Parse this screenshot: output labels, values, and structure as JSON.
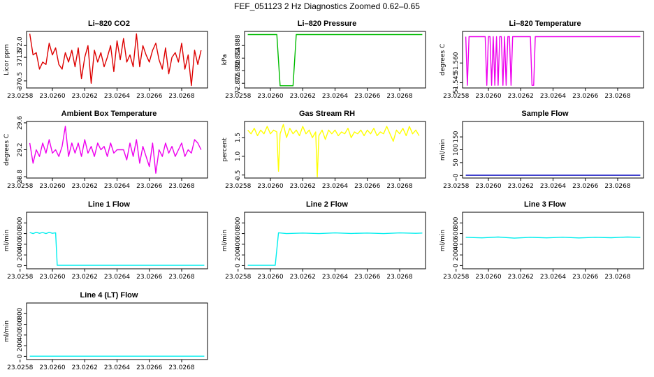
{
  "main_title": "FEF_051123  2 Hz Diagnostics Zoomed 0.62–0.65",
  "chart_data": [
    {
      "id": "co2",
      "type": "line",
      "title": "Li–820 CO2",
      "ylabel": "Licor ppm",
      "color": "#dd0000",
      "xlim": [
        23.02584,
        23.02696
      ],
      "ylim": [
        370.2,
        372.6
      ],
      "x_ticks": [
        23.0258,
        23.026,
        23.0262,
        23.0264,
        23.0266,
        23.0268
      ],
      "x_tick_labels": [
        "23.0258",
        "23.0260",
        "23.0262",
        "23.0264",
        "23.0266",
        "23.0268"
      ],
      "y_ticks": [
        370.5,
        371.5,
        372.0
      ],
      "y_tick_labels": [
        "370.5",
        "371.5",
        "372.0"
      ],
      "series": [
        {
          "name": "CO2",
          "x": [
            23.02586,
            23.02588,
            23.0259,
            23.02592,
            23.02594,
            23.02596,
            23.02598,
            23.026,
            23.02602,
            23.02604,
            23.02606,
            23.02608,
            23.0261,
            23.02612,
            23.02614,
            23.02616,
            23.02618,
            23.0262,
            23.02622,
            23.02624,
            23.02626,
            23.02628,
            23.0263,
            23.02632,
            23.02634,
            23.02636,
            23.02638,
            23.0264,
            23.02642,
            23.02644,
            23.02646,
            23.02648,
            23.0265,
            23.02652,
            23.02654,
            23.02656,
            23.02658,
            23.0266,
            23.02662,
            23.02664,
            23.02666,
            23.02668,
            23.0267,
            23.02672,
            23.02674,
            23.02676,
            23.02678,
            23.0268,
            23.02682,
            23.02684,
            23.02686,
            23.02688,
            23.0269,
            23.02692
          ],
          "values": [
            372.5,
            371.6,
            371.7,
            371.0,
            371.3,
            371.2,
            372.1,
            371.6,
            371.9,
            371.2,
            371.0,
            371.7,
            371.3,
            371.8,
            371.1,
            371.9,
            370.6,
            371.5,
            372.0,
            370.4,
            371.8,
            371.3,
            371.7,
            371.1,
            371.5,
            372.0,
            370.9,
            372.2,
            371.4,
            372.3,
            371.3,
            371.6,
            371.1,
            372.5,
            371.1,
            372.0,
            371.6,
            371.3,
            371.8,
            372.1,
            371.4,
            371.0,
            371.9,
            370.8,
            371.5,
            371.7,
            371.3,
            372.1,
            371.0,
            371.6,
            370.3,
            371.8,
            371.2,
            371.8
          ]
        }
      ]
    },
    {
      "id": "pressure",
      "type": "line",
      "title": "Li–820 Pressure",
      "ylabel": "kPa",
      "color": "#00bb00",
      "xlim": [
        23.02584,
        23.02696
      ],
      "ylim": [
        72.8745,
        72.8925
      ],
      "x_ticks": [
        23.0258,
        23.026,
        23.0262,
        23.0264,
        23.0266,
        23.0268
      ],
      "x_tick_labels": [
        "23.0258",
        "23.0260",
        "23.0262",
        "23.0264",
        "23.0266",
        "23.0268"
      ],
      "y_ticks": [
        72.876,
        72.88,
        72.884,
        72.888
      ],
      "y_tick_labels": [
        "72.876",
        "72.880",
        "72.884",
        "72.888"
      ],
      "series": [
        {
          "name": "Pressure",
          "x": [
            23.02586,
            23.02604,
            23.02606,
            23.02614,
            23.02616,
            23.02694
          ],
          "values": [
            72.8915,
            72.8915,
            72.8752,
            72.8752,
            72.8915,
            72.8915
          ]
        }
      ]
    },
    {
      "id": "temperature",
      "type": "line",
      "title": "Li–820 Temperature",
      "ylabel": "degrees C",
      "color": "#ee00ee",
      "xlim": [
        23.02584,
        23.02696
      ],
      "ylim": [
        51.541,
        51.584
      ],
      "x_ticks": [
        23.0258,
        23.026,
        23.0262,
        23.0264,
        23.0266,
        23.0268
      ],
      "x_tick_labels": [
        "23.0258",
        "23.0260",
        "23.0262",
        "23.0264",
        "23.0266",
        "23.0268"
      ],
      "y_ticks": [
        51.545,
        51.56
      ],
      "y_tick_labels": [
        "51.545",
        "51.560"
      ],
      "series": [
        {
          "name": "Temperature",
          "x": [
            23.02586,
            23.02587,
            23.02588,
            23.02589,
            23.0259,
            23.02598,
            23.02599,
            23.026,
            23.02601,
            23.02602,
            23.02603,
            23.02604,
            23.02605,
            23.02606,
            23.02607,
            23.02608,
            23.02609,
            23.0261,
            23.02611,
            23.02612,
            23.02613,
            23.02614,
            23.02615,
            23.02616,
            23.02617,
            23.02626,
            23.02627,
            23.02628,
            23.02629,
            23.0263,
            23.02694
          ],
          "values": [
            51.58,
            51.543,
            51.58,
            51.58,
            51.58,
            51.58,
            51.543,
            51.58,
            51.58,
            51.543,
            51.58,
            51.543,
            51.58,
            51.543,
            51.58,
            51.58,
            51.543,
            51.58,
            51.543,
            51.58,
            51.58,
            51.543,
            51.58,
            51.58,
            51.58,
            51.58,
            51.543,
            51.543,
            51.58,
            51.58,
            51.58
          ]
        }
      ]
    },
    {
      "id": "ambient",
      "type": "line",
      "title": "Ambient Box Temperature",
      "ylabel": "degrees C",
      "color": "#ee00ee",
      "xlim": [
        23.02584,
        23.02696
      ],
      "ylim": [
        28.78,
        29.62
      ],
      "x_ticks": [
        23.0258,
        23.026,
        23.0262,
        23.0264,
        23.0266,
        23.0268
      ],
      "x_tick_labels": [
        "23.0258",
        "23.0260",
        "23.0262",
        "23.0264",
        "23.0266",
        "23.0268"
      ],
      "y_ticks": [
        28.8,
        29.2,
        29.6
      ],
      "y_tick_labels": [
        "28.8",
        "29.2",
        "29.6"
      ],
      "series": [
        {
          "name": "Ambient",
          "x": [
            23.02586,
            23.02588,
            23.0259,
            23.02592,
            23.02594,
            23.02596,
            23.02598,
            23.026,
            23.02602,
            23.02604,
            23.02606,
            23.02608,
            23.0261,
            23.02612,
            23.02614,
            23.02616,
            23.02618,
            23.0262,
            23.02622,
            23.02624,
            23.02626,
            23.02628,
            23.0263,
            23.02632,
            23.02634,
            23.02636,
            23.02638,
            23.0264,
            23.02642,
            23.02644,
            23.02646,
            23.02648,
            23.0265,
            23.02652,
            23.02654,
            23.02656,
            23.02658,
            23.0266,
            23.02662,
            23.02664,
            23.02666,
            23.02668,
            23.0267,
            23.02672,
            23.02674,
            23.02676,
            23.02678,
            23.0268,
            23.02682,
            23.02684,
            23.02686,
            23.02688,
            23.0269,
            23.02692
          ],
          "values": [
            29.3,
            29.0,
            29.2,
            29.1,
            29.3,
            29.15,
            29.35,
            29.15,
            29.2,
            29.1,
            29.25,
            29.55,
            29.1,
            29.3,
            29.15,
            29.3,
            29.1,
            29.35,
            29.15,
            29.25,
            29.1,
            29.3,
            29.2,
            29.25,
            29.1,
            29.3,
            29.15,
            29.2,
            29.2,
            29.2,
            29.05,
            29.3,
            29.1,
            29.35,
            29.0,
            29.25,
            29.1,
            28.95,
            29.3,
            28.85,
            29.2,
            29.1,
            29.3,
            29.15,
            29.25,
            29.1,
            29.2,
            29.3,
            29.1,
            29.2,
            29.15,
            29.35,
            29.3,
            29.2
          ]
        }
      ]
    },
    {
      "id": "rh",
      "type": "line",
      "title": "Gas Stream RH",
      "ylabel": "percent",
      "color": "#ffff00",
      "xlim": [
        23.02584,
        23.02696
      ],
      "ylim": [
        0.42,
        1.93
      ],
      "x_ticks": [
        23.0258,
        23.026,
        23.0262,
        23.0264,
        23.0266,
        23.0268
      ],
      "x_tick_labels": [
        "23.0258",
        "23.0260",
        "23.0262",
        "23.0264",
        "23.0266",
        "23.0268"
      ],
      "y_ticks": [
        0.5,
        1.0,
        1.5
      ],
      "y_tick_labels": [
        "0.5",
        "1.0",
        "1.5"
      ],
      "series": [
        {
          "name": "RH",
          "x": [
            23.02586,
            23.02588,
            23.0259,
            23.02592,
            23.02594,
            23.02596,
            23.02598,
            23.026,
            23.02602,
            23.02604,
            23.02605,
            23.02606,
            23.02608,
            23.0261,
            23.02612,
            23.02614,
            23.02616,
            23.02618,
            23.0262,
            23.02622,
            23.02624,
            23.02626,
            23.02628,
            23.02629,
            23.0263,
            23.02632,
            23.02634,
            23.02636,
            23.02638,
            23.0264,
            23.02642,
            23.02644,
            23.02646,
            23.02648,
            23.0265,
            23.02652,
            23.02654,
            23.02656,
            23.02658,
            23.0266,
            23.02662,
            23.02664,
            23.02666,
            23.02668,
            23.0267,
            23.02672,
            23.02674,
            23.02676,
            23.02678,
            23.0268,
            23.02682,
            23.02684,
            23.02686,
            23.02688,
            23.0269,
            23.02692
          ],
          "values": [
            1.7,
            1.6,
            1.75,
            1.55,
            1.7,
            1.6,
            1.8,
            1.6,
            1.7,
            1.65,
            0.6,
            1.6,
            1.85,
            1.5,
            1.75,
            1.6,
            1.7,
            1.55,
            1.8,
            1.6,
            1.7,
            1.5,
            1.65,
            0.45,
            1.55,
            1.7,
            1.45,
            1.7,
            1.6,
            1.7,
            1.55,
            1.65,
            1.6,
            1.75,
            1.5,
            1.65,
            1.6,
            1.7,
            1.55,
            1.7,
            1.6,
            1.75,
            1.55,
            1.65,
            1.6,
            1.8,
            1.6,
            1.4,
            1.7,
            1.6,
            1.75,
            1.55,
            1.8,
            1.6,
            1.7,
            1.55
          ]
        }
      ]
    },
    {
      "id": "sample_flow",
      "type": "line",
      "title": "Sample Flow",
      "ylabel": "ml/min",
      "color": "#0000bb",
      "xlim": [
        23.02584,
        23.02696
      ],
      "ylim": [
        -10,
        210
      ],
      "x_ticks": [
        23.0258,
        23.026,
        23.0262,
        23.0264,
        23.0266,
        23.0268
      ],
      "x_tick_labels": [
        "23.0258",
        "23.0260",
        "23.0262",
        "23.0264",
        "23.0266",
        "23.0268"
      ],
      "y_ticks": [
        0,
        50,
        100,
        150
      ],
      "y_tick_labels": [
        "0",
        "50",
        "100",
        "150"
      ],
      "series": [
        {
          "name": "Sample Flow",
          "x": [
            23.02586,
            23.02694
          ],
          "values": [
            1,
            1
          ]
        }
      ]
    },
    {
      "id": "line1",
      "type": "line",
      "title": "Line 1 Flow",
      "ylabel": "ml/min",
      "color": "#00eeee",
      "xlim": [
        23.02584,
        23.02696
      ],
      "ylim": [
        -60,
        1000
      ],
      "x_ticks": [
        23.0258,
        23.026,
        23.0262,
        23.0264,
        23.0266,
        23.0268
      ],
      "x_tick_labels": [
        "23.0258",
        "23.0260",
        "23.0262",
        "23.0264",
        "23.0266",
        "23.0268"
      ],
      "y_ticks": [
        0,
        200,
        400,
        600,
        800
      ],
      "y_tick_labels": [
        "0",
        "200",
        "400",
        "600",
        "800"
      ],
      "series": [
        {
          "name": "Line 1",
          "x": [
            23.02586,
            23.02588,
            23.0259,
            23.02592,
            23.02594,
            23.02596,
            23.02598,
            23.026,
            23.02602,
            23.02603,
            23.02694
          ],
          "values": [
            620,
            600,
            625,
            605,
            620,
            600,
            625,
            605,
            615,
            5,
            5
          ]
        }
      ]
    },
    {
      "id": "line2",
      "type": "line",
      "title": "Line 2 Flow",
      "ylabel": "ml/min",
      "color": "#00eeee",
      "xlim": [
        23.02584,
        23.02696
      ],
      "ylim": [
        -60,
        1000
      ],
      "x_ticks": [
        23.0258,
        23.026,
        23.0262,
        23.0264,
        23.0266,
        23.0268
      ],
      "x_tick_labels": [
        "23.0258",
        "23.0260",
        "23.0262",
        "23.0264",
        "23.0266",
        "23.0268"
      ],
      "y_ticks": [
        0,
        200,
        400,
        600,
        800
      ],
      "y_tick_labels": [
        "0",
        "200",
        "400",
        "600",
        "800"
      ],
      "series": [
        {
          "name": "Line 2",
          "x": [
            23.02586,
            23.02603,
            23.02605,
            23.0261,
            23.0262,
            23.0263,
            23.0264,
            23.0265,
            23.0266,
            23.0267,
            23.0268,
            23.0269,
            23.02694
          ],
          "values": [
            5,
            5,
            615,
            600,
            610,
            600,
            612,
            602,
            610,
            600,
            612,
            605,
            610
          ]
        }
      ]
    },
    {
      "id": "line3",
      "type": "line",
      "title": "Line 3 Flow",
      "ylabel": "ml/min",
      "color": "#00eeee",
      "xlim": [
        23.02584,
        23.02696
      ],
      "ylim": [
        -60,
        1000
      ],
      "x_ticks": [
        23.0258,
        23.026,
        23.0262,
        23.0264,
        23.0266,
        23.0268
      ],
      "x_tick_labels": [
        "23.0258",
        "23.0260",
        "23.0262",
        "23.0264",
        "23.0266",
        "23.0268"
      ],
      "y_ticks": [
        0,
        200,
        400,
        600,
        800
      ],
      "y_tick_labels": [
        "0",
        "200",
        "400",
        "600",
        "800"
      ],
      "series": [
        {
          "name": "Line 3",
          "x": [
            23.02586,
            23.02596,
            23.02606,
            23.02616,
            23.02626,
            23.02636,
            23.02646,
            23.02656,
            23.02666,
            23.02676,
            23.02686,
            23.02694
          ],
          "values": [
            530,
            520,
            535,
            515,
            530,
            520,
            532,
            518,
            530,
            522,
            535,
            528
          ]
        }
      ]
    },
    {
      "id": "line4",
      "type": "line",
      "title": "Line 4 (LT) Flow",
      "ylabel": "ml/min",
      "color": "#00eeee",
      "xlim": [
        23.02584,
        23.02696
      ],
      "ylim": [
        -60,
        1000
      ],
      "x_ticks": [
        23.0258,
        23.026,
        23.0262,
        23.0264,
        23.0266,
        23.0268
      ],
      "x_tick_labels": [
        "23.0258",
        "23.0260",
        "23.0262",
        "23.0264",
        "23.0266",
        "23.0268"
      ],
      "y_ticks": [
        0,
        200,
        400,
        600,
        800
      ],
      "y_tick_labels": [
        "0",
        "200",
        "400",
        "600",
        "800"
      ],
      "series": [
        {
          "name": "Line 4",
          "x": [
            23.02586,
            23.02694
          ],
          "values": [
            3,
            3
          ]
        }
      ]
    }
  ]
}
